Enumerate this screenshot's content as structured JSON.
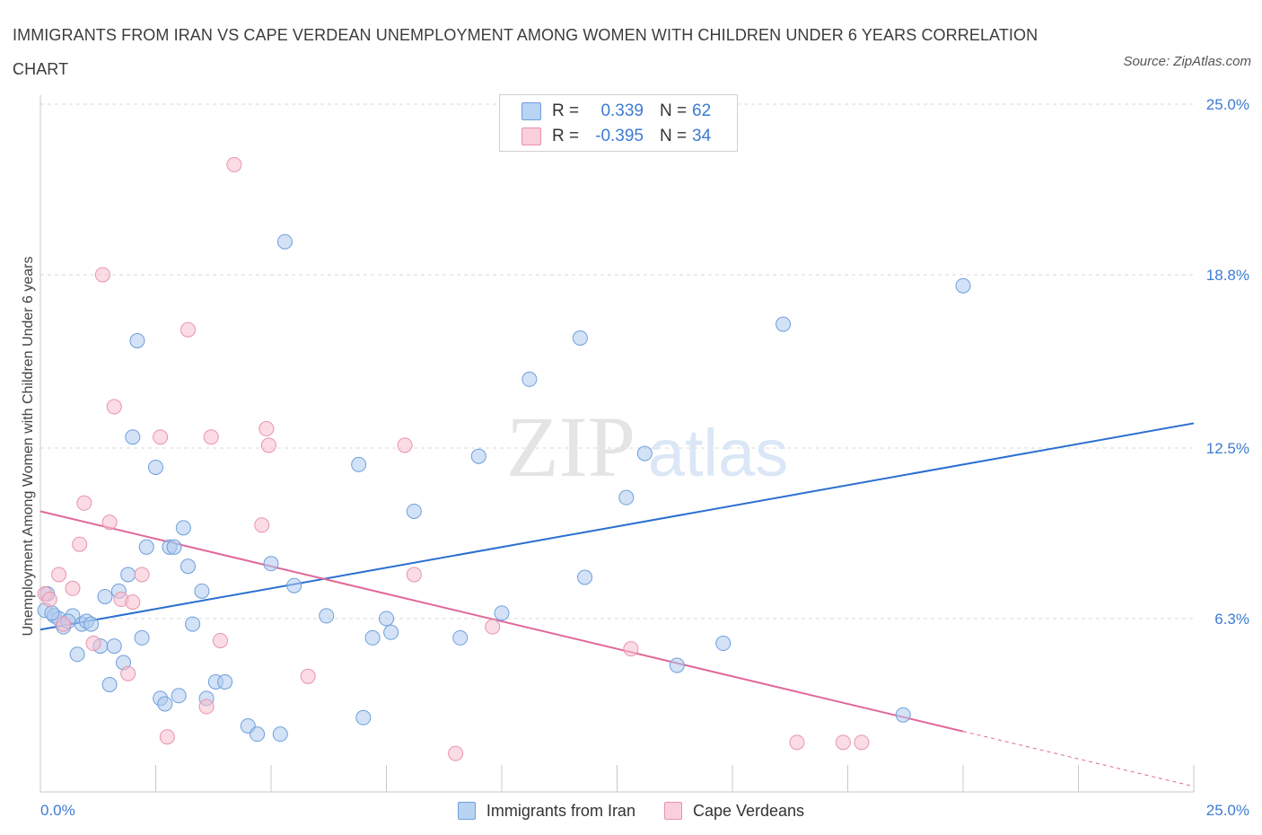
{
  "title": "IMMIGRANTS FROM IRAN VS CAPE VERDEAN UNEMPLOYMENT AMONG WOMEN WITH CHILDREN UNDER 6 YEARS CORRELATION CHART",
  "source": "Source: ZipAtlas.com",
  "watermark": {
    "zip": "ZIP",
    "atlas": "atlas"
  },
  "legend": {
    "r_label": "R =",
    "n_label": "N =",
    "rows": [
      {
        "r": "0.339",
        "n": "62"
      },
      {
        "r": "-0.395",
        "n": "34"
      }
    ]
  },
  "bottom_legend": [
    "Immigrants from Iran",
    "Cape Verdeans"
  ],
  "colors": {
    "blue_fill": "#aecbef",
    "blue_stroke": "#6f9fdc",
    "blue_line": "#2a6fd0",
    "pink_fill": "#f7c0d0",
    "pink_stroke": "#e893ad",
    "pink_line": "#e0689a",
    "grid": "#d9d9d9",
    "tick_text": "#3d7bd1"
  },
  "chart_data": {
    "type": "scatter",
    "title": "IMMIGRANTS FROM IRAN VS CAPE VERDEAN UNEMPLOYMENT AMONG WOMEN WITH CHILDREN UNDER 6 YEARS CORRELATION CHART",
    "xlabel": "",
    "ylabel": "Unemployment Among Women with Children Under 6 years",
    "xlim": [
      0,
      25
    ],
    "ylim": [
      0,
      25
    ],
    "x_tick_labels": [
      "0.0%",
      "25.0%"
    ],
    "y_tick_labels": [
      "6.3%",
      "12.5%",
      "18.8%",
      "25.0%"
    ],
    "y_tick_values": [
      6.3,
      12.5,
      18.8,
      25.0
    ],
    "grid": true,
    "series": [
      {
        "name": "Immigrants from Iran",
        "color": "#aecbef",
        "trend": {
          "x": [
            0,
            25
          ],
          "y": [
            5.9,
            13.4
          ]
        },
        "points": [
          [
            0.1,
            6.6
          ],
          [
            0.3,
            6.4
          ],
          [
            0.4,
            6.3
          ],
          [
            0.5,
            6.0
          ],
          [
            0.7,
            6.4
          ],
          [
            0.8,
            5.0
          ],
          [
            0.9,
            6.1
          ],
          [
            1.0,
            6.2
          ],
          [
            1.1,
            6.1
          ],
          [
            1.3,
            5.3
          ],
          [
            1.4,
            7.1
          ],
          [
            1.5,
            3.9
          ],
          [
            1.6,
            5.3
          ],
          [
            1.7,
            7.3
          ],
          [
            1.8,
            4.7
          ],
          [
            1.9,
            7.9
          ],
          [
            2.0,
            12.9
          ],
          [
            2.1,
            16.4
          ],
          [
            2.2,
            5.6
          ],
          [
            2.3,
            8.9
          ],
          [
            2.5,
            11.8
          ],
          [
            2.6,
            3.4
          ],
          [
            2.7,
            3.2
          ],
          [
            2.8,
            8.9
          ],
          [
            2.9,
            8.9
          ],
          [
            3.0,
            3.5
          ],
          [
            3.1,
            9.6
          ],
          [
            3.2,
            8.2
          ],
          [
            3.3,
            6.1
          ],
          [
            3.5,
            7.3
          ],
          [
            3.6,
            3.4
          ],
          [
            3.8,
            4.0
          ],
          [
            4.0,
            4.0
          ],
          [
            4.5,
            2.4
          ],
          [
            4.7,
            2.1
          ],
          [
            5.0,
            8.3
          ],
          [
            5.3,
            20.0
          ],
          [
            5.2,
            2.1
          ],
          [
            5.5,
            7.5
          ],
          [
            6.2,
            6.4
          ],
          [
            6.9,
            11.9
          ],
          [
            7.0,
            2.7
          ],
          [
            7.2,
            5.6
          ],
          [
            7.5,
            6.3
          ],
          [
            7.6,
            5.8
          ],
          [
            8.1,
            10.2
          ],
          [
            9.1,
            5.6
          ],
          [
            9.5,
            12.2
          ],
          [
            10.0,
            6.5
          ],
          [
            10.6,
            15.0
          ],
          [
            11.7,
            16.5
          ],
          [
            11.8,
            7.8
          ],
          [
            12.7,
            10.7
          ],
          [
            13.1,
            12.3
          ],
          [
            13.8,
            4.6
          ],
          [
            14.8,
            5.4
          ],
          [
            16.1,
            17.0
          ],
          [
            18.7,
            2.8
          ],
          [
            20.0,
            18.4
          ],
          [
            0.15,
            7.2
          ],
          [
            0.25,
            6.5
          ],
          [
            0.6,
            6.2
          ]
        ]
      },
      {
        "name": "Cape Verdeans",
        "color": "#f7c0d0",
        "trend": {
          "x": [
            0,
            20
          ],
          "y": [
            10.2,
            2.2
          ]
        },
        "points": [
          [
            0.1,
            7.2
          ],
          [
            0.2,
            7.0
          ],
          [
            0.4,
            7.9
          ],
          [
            0.5,
            6.1
          ],
          [
            0.7,
            7.4
          ],
          [
            0.85,
            9.0
          ],
          [
            0.95,
            10.5
          ],
          [
            1.15,
            5.4
          ],
          [
            1.35,
            18.8
          ],
          [
            1.5,
            9.8
          ],
          [
            1.6,
            14.0
          ],
          [
            1.75,
            7.0
          ],
          [
            1.9,
            4.3
          ],
          [
            2.0,
            6.9
          ],
          [
            2.2,
            7.9
          ],
          [
            2.6,
            12.9
          ],
          [
            2.75,
            2.0
          ],
          [
            3.2,
            16.8
          ],
          [
            3.6,
            3.1
          ],
          [
            3.7,
            12.9
          ],
          [
            3.9,
            5.5
          ],
          [
            4.2,
            22.8
          ],
          [
            4.8,
            9.7
          ],
          [
            4.9,
            13.2
          ],
          [
            4.95,
            12.6
          ],
          [
            5.8,
            4.2
          ],
          [
            7.9,
            12.6
          ],
          [
            8.1,
            7.9
          ],
          [
            9.0,
            1.4
          ],
          [
            9.8,
            6.0
          ],
          [
            12.8,
            5.2
          ],
          [
            16.4,
            1.8
          ],
          [
            17.4,
            1.8
          ],
          [
            17.8,
            1.8
          ]
        ]
      }
    ]
  }
}
